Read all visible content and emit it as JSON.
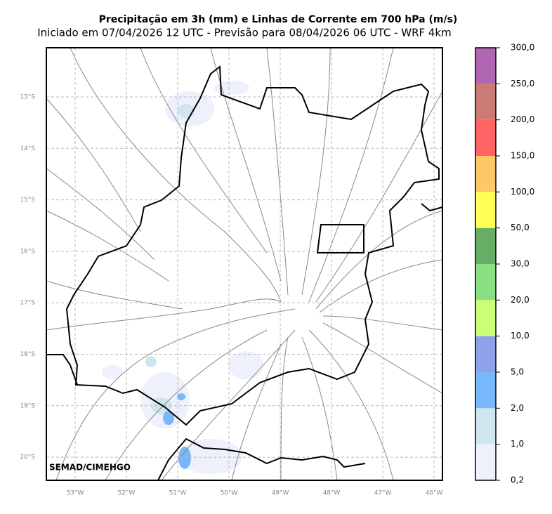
{
  "header": {
    "title": "Precipitação em 3h (mm) e Linhas de Corrente em 700 hPa (m/s)",
    "subtitle": "Iniciado em 07/04/2026 12 UTC - Previsão para 08/04/2026 06 UTC - WRF 4km"
  },
  "map": {
    "lat_labels": [
      "13°S",
      "14°S",
      "15°S",
      "16°S",
      "17°S",
      "18°S",
      "19°S",
      "20°S"
    ],
    "lon_labels": [
      "53°W",
      "52°W",
      "51°W",
      "50°W",
      "49°W",
      "48°W",
      "47°W",
      "46°W"
    ],
    "credit": "SEMAD/CIMEHGO"
  },
  "colorbar": {
    "labels": [
      "0,2",
      "1,0",
      "2,0",
      "5,0",
      "10,0",
      "20,0",
      "30,0",
      "50,0",
      "100,0",
      "150,0",
      "200,0",
      "250,0",
      "300,0"
    ],
    "colors": [
      "#eef0fb",
      "#cfe6ee",
      "#78b8fa",
      "#8ea2ea",
      "#ccff77",
      "#88e080",
      "#66ae66",
      "#ffff55",
      "#ffc866",
      "#ff6464",
      "#cc7a74",
      "#b066b2"
    ]
  }
}
